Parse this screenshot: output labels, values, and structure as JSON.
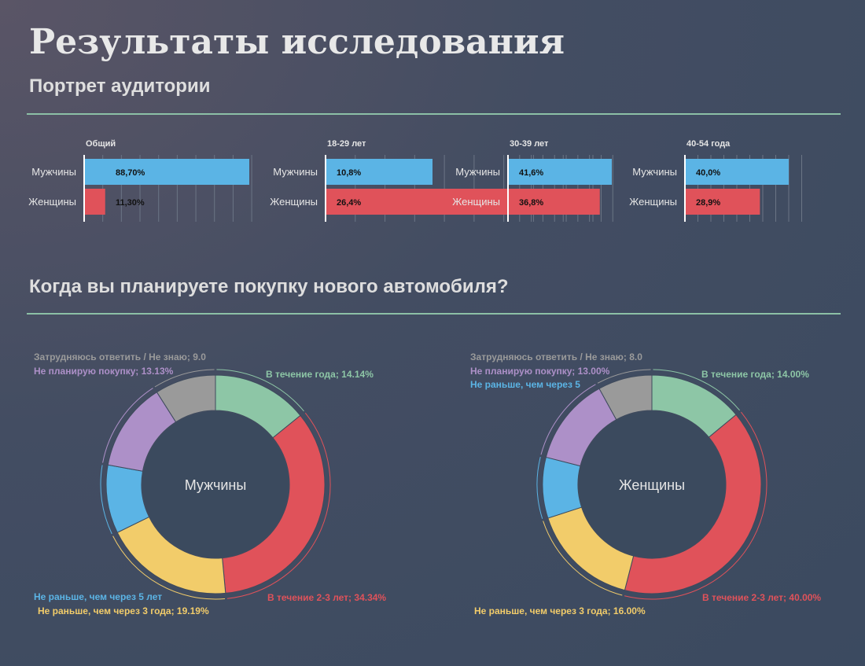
{
  "page": {
    "title": "Результаты исследования",
    "section1_title": "Портрет аудитории",
    "section2_title": "Когда вы планируете покупку нового автомобиля?"
  },
  "colors": {
    "men_bar": "#5bb4e5",
    "women_bar": "#e0525a",
    "divider": "#8cc0a6",
    "slice_year": "#8dc6a6",
    "slice_2_3": "#e0525a",
    "slice_3": "#f2cc6a",
    "slice_5": "#5bb4e5",
    "slice_no": "#ad90c8",
    "slice_unknown": "#9a9a9a"
  },
  "chart_data": [
    {
      "type": "bar",
      "title": "Общий",
      "categories": [
        "Мужчины",
        "Женщины"
      ],
      "values": [
        88.7,
        11.3
      ],
      "data_labels": [
        "88,70%",
        "11,30%"
      ],
      "xlim": [
        0,
        90
      ]
    },
    {
      "type": "bar",
      "title": "18-29 лет",
      "categories": [
        "Мужчины",
        "Женщины"
      ],
      "values": [
        10.8,
        26.4
      ],
      "data_labels": [
        "10,8%",
        "26,4%"
      ],
      "xlim": [
        0,
        27
      ]
    },
    {
      "type": "bar",
      "title": "30-39  лет",
      "categories": [
        "Мужчины",
        "Женщины"
      ],
      "values": [
        41.6,
        36.8
      ],
      "data_labels": [
        "41,6%",
        "36,8%"
      ],
      "xlim": [
        0,
        42
      ]
    },
    {
      "type": "bar",
      "title": "40-54 года",
      "categories": [
        "Мужчины",
        "Женщины"
      ],
      "values": [
        40.0,
        28.9
      ],
      "data_labels": [
        "40,0%",
        "28,9%"
      ],
      "xlim": [
        0,
        45
      ]
    },
    {
      "type": "pie",
      "title": "Мужчины",
      "slices": [
        {
          "label": "В течение года; 14.14%",
          "value": 14.14,
          "color": "#8dc6a6"
        },
        {
          "label": "В течение 2-3 лет; 34.34%",
          "value": 34.34,
          "color": "#e0525a"
        },
        {
          "label": "Не раньше, чем через 3 года; 19.19%",
          "value": 19.19,
          "color": "#f2cc6a"
        },
        {
          "label": "Не раньше, чем через 5 лет",
          "value": 10.1,
          "color": "#5bb4e5"
        },
        {
          "label": "Не планирую покупку; 13.13%",
          "value": 13.13,
          "color": "#ad90c8"
        },
        {
          "label": "Затрудняюсь ответить / Не знаю; 9.0",
          "value": 9.0,
          "color": "#9a9a9a"
        }
      ]
    },
    {
      "type": "pie",
      "title": "Женщины",
      "slices": [
        {
          "label": "В течение года; 14.00%",
          "value": 14.0,
          "color": "#8dc6a6"
        },
        {
          "label": "В течение 2-3 лет; 40.00%",
          "value": 40.0,
          "color": "#e0525a"
        },
        {
          "label": "Не раньше, чем через 3 года; 16.00%",
          "value": 16.0,
          "color": "#f2cc6a"
        },
        {
          "label": "Не раньше, чем через 5",
          "value": 9.0,
          "color": "#5bb4e5"
        },
        {
          "label": "Не планирую покупку; 13.00%",
          "value": 13.0,
          "color": "#ad90c8"
        },
        {
          "label": "Затрудняюсь ответить / Не знаю; 8.0",
          "value": 8.0,
          "color": "#9a9a9a"
        }
      ]
    }
  ]
}
